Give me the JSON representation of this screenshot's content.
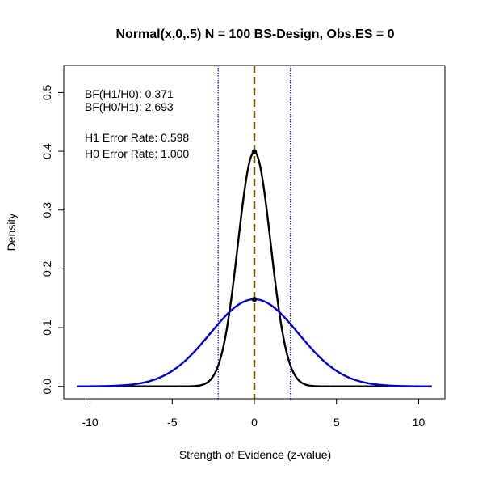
{
  "chart_data": {
    "type": "line",
    "title": "Normal(x,0,.5) N = 100 BS-Design, Obs.ES = 0",
    "xlabel": "Strength of Evidence (z-value)",
    "ylabel": "Density",
    "xlim": [
      -11.6,
      11.6
    ],
    "ylim": [
      -0.021,
      0.546
    ],
    "x_ticks": [
      -10,
      -5,
      0,
      5,
      10
    ],
    "x_tick_labels": [
      "-10",
      "-5",
      "0",
      "5",
      "10"
    ],
    "y_ticks": [
      0.0,
      0.1,
      0.2,
      0.3,
      0.4,
      0.5
    ],
    "y_tick_labels": [
      "0.0",
      "0.1",
      "0.2",
      "0.3",
      "0.4",
      "0.5"
    ],
    "grid": false,
    "legend": "none",
    "series": [
      {
        "distribution": "normal",
        "mean": 0,
        "sd": 1.0,
        "x_range": [
          -10.8,
          10.8
        ],
        "color": "#000000"
      },
      {
        "distribution": "normal",
        "mean": 0,
        "sd": 2.69,
        "x_range": [
          -10.8,
          10.8
        ],
        "color": "#0000cd"
      }
    ],
    "points": [
      {
        "x": 0,
        "y": 0.399
      },
      {
        "x": 0,
        "y": 0.148
      }
    ],
    "vlines": [
      {
        "x": -2.2,
        "color": "#0000cd",
        "style": "dotted"
      },
      {
        "x": 2.2,
        "color": "#0000cd",
        "style": "dotted"
      },
      {
        "x": 0,
        "color": "#7a5200",
        "style": "dashed"
      }
    ],
    "annotations": [
      "BF(H1/H0): 0.371",
      "BF(H0/H1): 2.693",
      "H1 Error Rate: 0.598",
      "H0 Error Rate: 1.000"
    ]
  }
}
